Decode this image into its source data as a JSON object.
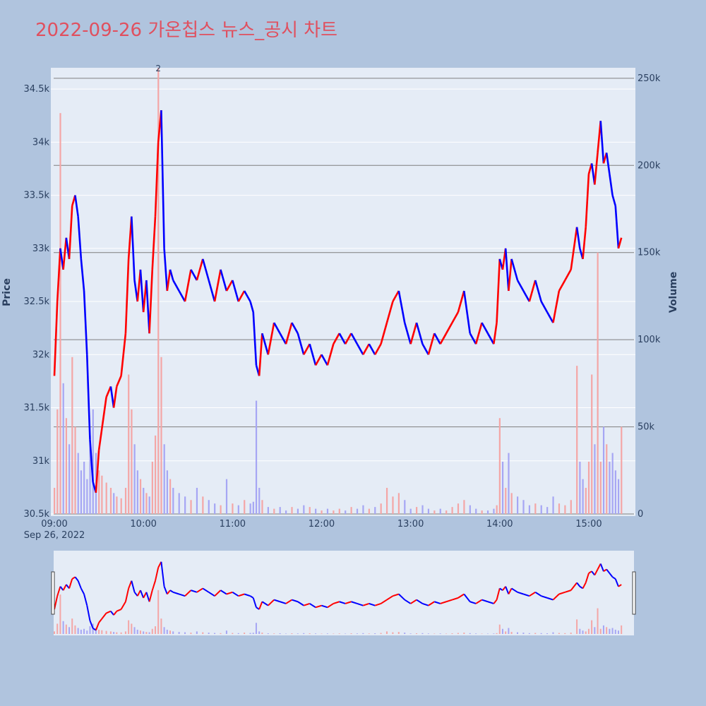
{
  "title": "2022-09-26 가온칩스 뉴스_공시 차트",
  "chart_data": {
    "type": "candlestick",
    "y_axis_title": "Price",
    "y2_axis_title": "Volume",
    "price_range": [
      30500,
      34700
    ],
    "volume_range": [
      0,
      256000
    ],
    "price_ticks": [
      {
        "v": 30500,
        "label": "30.5k"
      },
      {
        "v": 31000,
        "label": "31k"
      },
      {
        "v": 31500,
        "label": "31.5k"
      },
      {
        "v": 32000,
        "label": "32k"
      },
      {
        "v": 32500,
        "label": "32.5k"
      },
      {
        "v": 33000,
        "label": "33k"
      },
      {
        "v": 33500,
        "label": "33.5k"
      },
      {
        "v": 34000,
        "label": "34k"
      },
      {
        "v": 34500,
        "label": "34.5k"
      }
    ],
    "volume_ticks": [
      {
        "v": 0,
        "label": "0"
      },
      {
        "v": 50000,
        "label": "50k"
      },
      {
        "v": 100000,
        "label": "100k"
      },
      {
        "v": 150000,
        "label": "150k"
      },
      {
        "v": 200000,
        "label": "200k"
      },
      {
        "v": 250000,
        "label": "250k"
      }
    ],
    "time_ticks": [
      {
        "t": "09:00",
        "label": "09:00",
        "sublabel": "Sep 26, 2022"
      },
      {
        "t": "10:00",
        "label": "10:00"
      },
      {
        "t": "11:00",
        "label": "11:00"
      },
      {
        "t": "12:00",
        "label": "12:00"
      },
      {
        "t": "13:00",
        "label": "13:00"
      },
      {
        "t": "14:00",
        "label": "14:00"
      },
      {
        "t": "15:00",
        "label": "15:00"
      }
    ],
    "annotations": [
      {
        "t": "10:10",
        "text": "2"
      }
    ],
    "up_color": "#ff0000",
    "down_color": "#0000ff",
    "volume_up_color": "#f4a6a6",
    "volume_down_color": "#a6a6f4",
    "price_path": [
      [
        "09:00",
        31800
      ],
      [
        "09:02",
        32500
      ],
      [
        "09:04",
        33000
      ],
      [
        "09:06",
        32800
      ],
      [
        "09:08",
        33100
      ],
      [
        "09:10",
        32900
      ],
      [
        "09:12",
        33400
      ],
      [
        "09:14",
        33500
      ],
      [
        "09:16",
        33300
      ],
      [
        "09:18",
        32900
      ],
      [
        "09:20",
        32600
      ],
      [
        "09:22",
        32000
      ],
      [
        "09:24",
        31200
      ],
      [
        "09:26",
        30800
      ],
      [
        "09:28",
        30700
      ],
      [
        "09:30",
        31100
      ],
      [
        "09:32",
        31300
      ],
      [
        "09:35",
        31600
      ],
      [
        "09:38",
        31700
      ],
      [
        "09:40",
        31500
      ],
      [
        "09:42",
        31700
      ],
      [
        "09:45",
        31800
      ],
      [
        "09:48",
        32200
      ],
      [
        "09:50",
        32900
      ],
      [
        "09:52",
        33300
      ],
      [
        "09:54",
        32700
      ],
      [
        "09:56",
        32500
      ],
      [
        "09:58",
        32800
      ],
      [
        "10:00",
        32400
      ],
      [
        "10:02",
        32700
      ],
      [
        "10:04",
        32200
      ],
      [
        "10:06",
        32800
      ],
      [
        "10:08",
        33300
      ],
      [
        "10:10",
        34000
      ],
      [
        "10:12",
        34300
      ],
      [
        "10:14",
        33000
      ],
      [
        "10:16",
        32600
      ],
      [
        "10:18",
        32800
      ],
      [
        "10:20",
        32700
      ],
      [
        "10:24",
        32600
      ],
      [
        "10:28",
        32500
      ],
      [
        "10:32",
        32800
      ],
      [
        "10:36",
        32700
      ],
      [
        "10:40",
        32900
      ],
      [
        "10:44",
        32700
      ],
      [
        "10:48",
        32500
      ],
      [
        "10:52",
        32800
      ],
      [
        "10:56",
        32600
      ],
      [
        "11:00",
        32700
      ],
      [
        "11:04",
        32500
      ],
      [
        "11:08",
        32600
      ],
      [
        "11:12",
        32500
      ],
      [
        "11:14",
        32400
      ],
      [
        "11:16",
        31900
      ],
      [
        "11:18",
        31800
      ],
      [
        "11:20",
        32200
      ],
      [
        "11:24",
        32000
      ],
      [
        "11:28",
        32300
      ],
      [
        "11:32",
        32200
      ],
      [
        "11:36",
        32100
      ],
      [
        "11:40",
        32300
      ],
      [
        "11:44",
        32200
      ],
      [
        "11:48",
        32000
      ],
      [
        "11:52",
        32100
      ],
      [
        "11:56",
        31900
      ],
      [
        "12:00",
        32000
      ],
      [
        "12:04",
        31900
      ],
      [
        "12:08",
        32100
      ],
      [
        "12:12",
        32200
      ],
      [
        "12:16",
        32100
      ],
      [
        "12:20",
        32200
      ],
      [
        "12:24",
        32100
      ],
      [
        "12:28",
        32000
      ],
      [
        "12:32",
        32100
      ],
      [
        "12:36",
        32000
      ],
      [
        "12:40",
        32100
      ],
      [
        "12:44",
        32300
      ],
      [
        "12:48",
        32500
      ],
      [
        "12:52",
        32600
      ],
      [
        "12:56",
        32300
      ],
      [
        "13:00",
        32100
      ],
      [
        "13:04",
        32300
      ],
      [
        "13:08",
        32100
      ],
      [
        "13:12",
        32000
      ],
      [
        "13:16",
        32200
      ],
      [
        "13:20",
        32100
      ],
      [
        "13:24",
        32200
      ],
      [
        "13:28",
        32300
      ],
      [
        "13:32",
        32400
      ],
      [
        "13:36",
        32600
      ],
      [
        "13:40",
        32200
      ],
      [
        "13:44",
        32100
      ],
      [
        "13:48",
        32300
      ],
      [
        "13:52",
        32200
      ],
      [
        "13:56",
        32100
      ],
      [
        "13:58",
        32300
      ],
      [
        "14:00",
        32900
      ],
      [
        "14:02",
        32800
      ],
      [
        "14:04",
        33000
      ],
      [
        "14:06",
        32600
      ],
      [
        "14:08",
        32900
      ],
      [
        "14:12",
        32700
      ],
      [
        "14:16",
        32600
      ],
      [
        "14:20",
        32500
      ],
      [
        "14:24",
        32700
      ],
      [
        "14:28",
        32500
      ],
      [
        "14:32",
        32400
      ],
      [
        "14:36",
        32300
      ],
      [
        "14:40",
        32600
      ],
      [
        "14:44",
        32700
      ],
      [
        "14:48",
        32800
      ],
      [
        "14:52",
        33200
      ],
      [
        "14:54",
        33000
      ],
      [
        "14:56",
        32900
      ],
      [
        "14:58",
        33200
      ],
      [
        "15:00",
        33700
      ],
      [
        "15:02",
        33800
      ],
      [
        "15:04",
        33600
      ],
      [
        "15:06",
        33900
      ],
      [
        "15:08",
        34200
      ],
      [
        "15:10",
        33800
      ],
      [
        "15:12",
        33900
      ],
      [
        "15:14",
        33700
      ],
      [
        "15:16",
        33500
      ],
      [
        "15:18",
        33400
      ],
      [
        "15:20",
        33000
      ],
      [
        "15:22",
        33100
      ]
    ],
    "volume_bars": [
      [
        "09:00",
        15000
      ],
      [
        "09:02",
        60000
      ],
      [
        "09:04",
        230000
      ],
      [
        "09:06",
        75000
      ],
      [
        "09:08",
        55000
      ],
      [
        "09:10",
        40000
      ],
      [
        "09:12",
        90000
      ],
      [
        "09:14",
        50000
      ],
      [
        "09:16",
        35000
      ],
      [
        "09:18",
        25000
      ],
      [
        "09:20",
        30000
      ],
      [
        "09:22",
        20000
      ],
      [
        "09:24",
        45000
      ],
      [
        "09:26",
        60000
      ],
      [
        "09:28",
        35000
      ],
      [
        "09:30",
        25000
      ],
      [
        "09:32",
        22000
      ],
      [
        "09:35",
        18000
      ],
      [
        "09:38",
        15000
      ],
      [
        "09:40",
        12000
      ],
      [
        "09:42",
        10000
      ],
      [
        "09:45",
        9000
      ],
      [
        "09:48",
        15000
      ],
      [
        "09:50",
        80000
      ],
      [
        "09:52",
        60000
      ],
      [
        "09:54",
        40000
      ],
      [
        "09:56",
        25000
      ],
      [
        "09:58",
        20000
      ],
      [
        "10:00",
        15000
      ],
      [
        "10:02",
        12000
      ],
      [
        "10:04",
        10000
      ],
      [
        "10:06",
        30000
      ],
      [
        "10:08",
        45000
      ],
      [
        "10:10",
        256000
      ],
      [
        "10:12",
        90000
      ],
      [
        "10:14",
        40000
      ],
      [
        "10:16",
        25000
      ],
      [
        "10:18",
        20000
      ],
      [
        "10:20",
        15000
      ],
      [
        "10:24",
        12000
      ],
      [
        "10:28",
        10000
      ],
      [
        "10:32",
        8000
      ],
      [
        "10:36",
        15000
      ],
      [
        "10:40",
        10000
      ],
      [
        "10:44",
        8000
      ],
      [
        "10:48",
        6000
      ],
      [
        "10:52",
        5000
      ],
      [
        "10:56",
        20000
      ],
      [
        "11:00",
        6000
      ],
      [
        "11:04",
        5000
      ],
      [
        "11:08",
        8000
      ],
      [
        "11:12",
        6000
      ],
      [
        "11:14",
        7000
      ],
      [
        "11:16",
        65000
      ],
      [
        "11:18",
        15000
      ],
      [
        "11:20",
        8000
      ],
      [
        "11:24",
        4000
      ],
      [
        "11:28",
        3000
      ],
      [
        "11:32",
        4000
      ],
      [
        "11:36",
        2000
      ],
      [
        "11:40",
        4000
      ],
      [
        "11:44",
        3000
      ],
      [
        "11:48",
        5000
      ],
      [
        "11:52",
        4000
      ],
      [
        "11:56",
        3000
      ],
      [
        "12:00",
        2000
      ],
      [
        "12:04",
        3000
      ],
      [
        "12:08",
        2000
      ],
      [
        "12:12",
        3000
      ],
      [
        "12:16",
        2000
      ],
      [
        "12:20",
        4000
      ],
      [
        "12:24",
        3000
      ],
      [
        "12:28",
        5000
      ],
      [
        "12:32",
        3000
      ],
      [
        "12:36",
        4000
      ],
      [
        "12:40",
        6000
      ],
      [
        "12:44",
        15000
      ],
      [
        "12:48",
        10000
      ],
      [
        "12:52",
        12000
      ],
      [
        "12:56",
        8000
      ],
      [
        "13:00",
        3000
      ],
      [
        "13:04",
        4000
      ],
      [
        "13:08",
        5000
      ],
      [
        "13:12",
        3000
      ],
      [
        "13:16",
        2000
      ],
      [
        "13:20",
        3000
      ],
      [
        "13:24",
        2000
      ],
      [
        "13:28",
        4000
      ],
      [
        "13:32",
        6000
      ],
      [
        "13:36",
        8000
      ],
      [
        "13:40",
        5000
      ],
      [
        "13:44",
        3000
      ],
      [
        "13:48",
        2000
      ],
      [
        "13:52",
        2000
      ],
      [
        "13:56",
        3000
      ],
      [
        "13:58",
        5000
      ],
      [
        "14:00",
        55000
      ],
      [
        "14:02",
        30000
      ],
      [
        "14:04",
        15000
      ],
      [
        "14:06",
        35000
      ],
      [
        "14:08",
        12000
      ],
      [
        "14:12",
        10000
      ],
      [
        "14:16",
        8000
      ],
      [
        "14:20",
        5000
      ],
      [
        "14:24",
        6000
      ],
      [
        "14:28",
        5000
      ],
      [
        "14:32",
        4000
      ],
      [
        "14:36",
        10000
      ],
      [
        "14:40",
        6000
      ],
      [
        "14:44",
        5000
      ],
      [
        "14:48",
        8000
      ],
      [
        "14:52",
        85000
      ],
      [
        "14:54",
        30000
      ],
      [
        "14:56",
        20000
      ],
      [
        "14:58",
        15000
      ],
      [
        "15:00",
        30000
      ],
      [
        "15:02",
        80000
      ],
      [
        "15:04",
        40000
      ],
      [
        "15:06",
        150000
      ],
      [
        "15:08",
        30000
      ],
      [
        "15:10",
        50000
      ],
      [
        "15:12",
        40000
      ],
      [
        "15:14",
        30000
      ],
      [
        "15:16",
        35000
      ],
      [
        "15:18",
        25000
      ],
      [
        "15:20",
        20000
      ],
      [
        "15:22",
        50000
      ]
    ]
  }
}
